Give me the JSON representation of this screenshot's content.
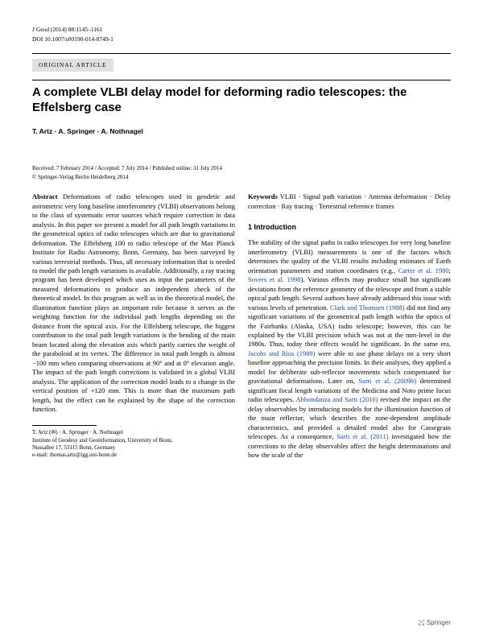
{
  "header": {
    "journal": "J Geod (2014) 88:1145–1161",
    "doi": "DOI 10.1007/s00190-014-0749-1",
    "articleType": "ORIGINAL ARTICLE"
  },
  "title": "A complete VLBI delay model for deforming radio telescopes: the Effelsberg case",
  "authors": "T. Artz · A. Springer · A. Nothnagel",
  "dates": "Received: 7 February 2014 / Accepted: 7 July 2014 / Published online: 31 July 2014",
  "copyright": "© Springer-Verlag Berlin Heidelberg 2014",
  "abstract": {
    "label": "Abstract",
    "text": "Deformations of radio telescopes used in geodetic and astrometric very long baseline interferometry (VLBI) observations belong to the class of systematic error sources which require correction in data analysis. In this paper we present a model for all path length variations in the geometrical optics of radio telescopes which are due to gravitational deformation. The Effelsberg 100 m radio telescope of the Max Planck Institute for Radio Astronomy, Bonn, Germany, has been surveyed by various terrestrial methods. Thus, all necessary information that is needed to model the path length variations is available. Additionally, a ray tracing program has been developed which uses as input the parameters of the measured deformations to produce an independent check of the theoretical model. In this program as well as in the theoretical model, the illumination function plays an important role because it serves as the weighting function for the individual path lengths depending on the distance from the optical axis. For the Effelsberg telescope, the biggest contribution to the total path length variations is the bending of the main beam located along the elevation axis which partly carries the weight of the paraboloid at its vertex. The difference in total path length is almost −100 mm when comparing observations at 90° and at 0° elevation angle. The impact of the path length corrections is validated in a global VLBI analysis. The application of the correction model leads to a change in the vertical position of +120 mm. This is more than the maximum path length, but the effect can be explained by the shape of the correction function."
  },
  "keywords": {
    "label": "Keywords",
    "text": "VLBI · Signal path variation · Antenna deformation · Delay correction · Ray tracing · Terrestrial reference frames"
  },
  "section1": {
    "heading": "1 Introduction",
    "p1a": "The stability of the signal paths in radio telescopes for very long baseline interferometry (VLBI) measurements is one of the factors which determines the quality of the VLBI results including estimates of Earth orientation parameters and station coordinates (e.g., ",
    "c1": "Carter et al. 1980",
    "p1b": "; ",
    "c2": "Sovers et al. 1998",
    "p1c": "). Various effects may produce small but significant deviations from the reference geometry of the telescope and from a stable optical path length. Several authors have already addressed this issue with various levels of penetration. ",
    "c3": "Clark and Thomsen (1988)",
    "p1d": " did not find any significant variations of the geometrical path length within the optics of the Fairbanks (Alaska, USA) radio telescope; however, this can be explained by the VLBI precision which was not at the mm-level in the 1980s. Thus, today their effects would be significant. In the same era, ",
    "c4": "Jacobs and Rius (1989)",
    "p1e": " were able to use phase delays on a very short baseline approaching the precision limits. In their analyses, they applied a model for deliberate sub-reflector movements which compensated for gravitational deformations. Later on, ",
    "c5": "Sarti et al. (2009b)",
    "p1f": " determined significant focal length variations of the Medicina and Noto prime focus radio telescopes. ",
    "c6": "Abbondanza and Sarti (2010)",
    "p1g": " revised the impact on the delay observables by introducing models for the illumination function of the main reflector, which describes the zone-dependent amplitude characteristics, and provided a detailed model also for Cassegrain telescopes. As a consequence, ",
    "c7": "Sarti et al. (2011)",
    "p1h": " investigated how the corrections to the delay observables affect the height determinations and how the scale of the"
  },
  "footer": {
    "line1": "T. Artz (✉) · A. Springer · A. Nothnagel",
    "line2": "Institute of Geodesy and Geoinformation, University of Bonn,",
    "line3": "Nussallee 17, 53115 Bonn, Germany",
    "line4": "e-mail: thomas.artz@igg.uni-bonn.de"
  },
  "publisher": "Springer"
}
